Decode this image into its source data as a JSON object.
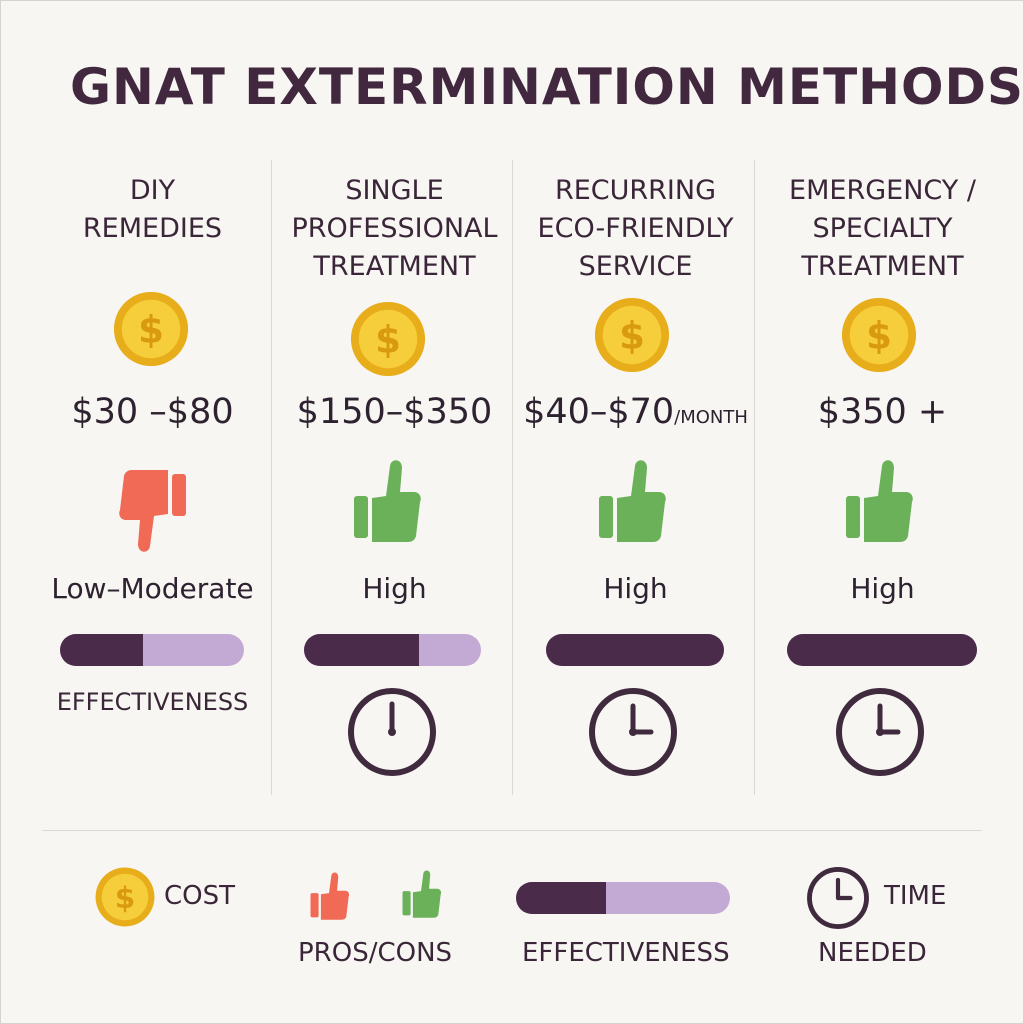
{
  "title": "GNAT EXTERMINATION METHODS",
  "columns": [
    {
      "name_lines": [
        "DIY",
        "REMEDIES"
      ],
      "price": "$30 –$80",
      "price_suffix": "",
      "rating": "Low–Moderate",
      "thumb": "thumbs-down",
      "effectiveness": 0.45,
      "effectiveness_label": "EFFECTIVENESS"
    },
    {
      "name_lines": [
        "SINGLE",
        "PROFESSIONAL",
        "TREATMENT"
      ],
      "price": "$150–$350",
      "price_suffix": "",
      "rating": "High",
      "thumb": "thumbs-up",
      "effectiveness": 0.65
    },
    {
      "name_lines": [
        "RECURRING",
        "ECO-FRIENDLY",
        "SERVICE"
      ],
      "price": "$40–$70",
      "price_suffix": "/MONTH",
      "rating": "High",
      "thumb": "thumbs-up",
      "effectiveness": 1.0
    },
    {
      "name_lines": [
        "EMERGENCY /",
        "SPECIALTY",
        "TREATMENT"
      ],
      "price": "$350 +",
      "price_suffix": "",
      "rating": "High",
      "thumb": "thumbs-up",
      "effectiveness": 1.0
    }
  ],
  "legend": {
    "cost": "COST",
    "pros_cons": "PROS/CONS",
    "effectiveness": "EFFECTIVENESS",
    "effectiveness_sample": 0.42,
    "time_line1": "TIME",
    "time_line2": "NEEDED"
  },
  "icons": {
    "coin": "dollar-coin-icon",
    "thumbs_up": "thumbs-up-icon",
    "thumbs_down": "thumbs-down-icon",
    "clock": "clock-icon"
  },
  "colors": {
    "text": "#42283f",
    "bar_fill": "#4b2b4a",
    "bar_track": "#c3aad4",
    "thumb_up": "#6ab15a",
    "thumb_down": "#f06a55",
    "coin": "#f2c530"
  }
}
